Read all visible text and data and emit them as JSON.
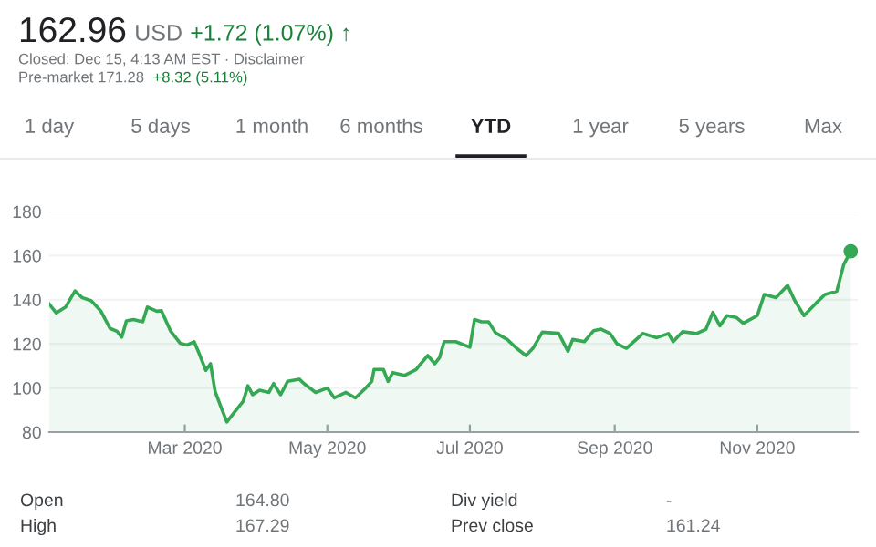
{
  "chart_data": {
    "type": "area",
    "annotations": [
      "162.96",
      "USD",
      "+1.72 (1.07%) ↑",
      "Closed: Dec 15, 4:13 AM EST · Disclaimer",
      "Pre-market 171.28",
      "+8.32 (5.11%)",
      "1 day",
      "5 days",
      "1 month",
      "6 months",
      "YTD",
      "1 year",
      "5 years",
      "Max",
      "Open",
      "164.80",
      "High",
      "167.29",
      "Div yield",
      "-",
      "Prev close",
      "161.24"
    ],
    "x": [
      "2020-01-03",
      "2020-01-06",
      "2020-01-10",
      "2020-01-14",
      "2020-01-17",
      "2020-01-21",
      "2020-01-25",
      "2020-01-29",
      "2020-02-01",
      "2020-02-03",
      "2020-02-05",
      "2020-02-08",
      "2020-02-12",
      "2020-02-14",
      "2020-02-18",
      "2020-02-20",
      "2020-02-24",
      "2020-02-28",
      "2020-03-02",
      "2020-03-05",
      "2020-03-07",
      "2020-03-10",
      "2020-03-12",
      "2020-03-14",
      "2020-03-17",
      "2020-03-19",
      "2020-03-22",
      "2020-03-26",
      "2020-03-28",
      "2020-03-30",
      "2020-04-02",
      "2020-04-06",
      "2020-04-08",
      "2020-04-11",
      "2020-04-14",
      "2020-04-19",
      "2020-04-21",
      "2020-04-26",
      "2020-05-01",
      "2020-05-04",
      "2020-05-09",
      "2020-05-13",
      "2020-05-17",
      "2020-05-20",
      "2020-05-21",
      "2020-05-25",
      "2020-05-27",
      "2020-05-29",
      "2020-06-03",
      "2020-06-08",
      "2020-06-10",
      "2020-06-13",
      "2020-06-16",
      "2020-06-18",
      "2020-06-20",
      "2020-06-25",
      "2020-07-01",
      "2020-07-03",
      "2020-07-06",
      "2020-07-09",
      "2020-07-12",
      "2020-07-17",
      "2020-07-21",
      "2020-07-25",
      "2020-07-28",
      "2020-08-01",
      "2020-08-08",
      "2020-08-12",
      "2020-08-14",
      "2020-08-19",
      "2020-08-23",
      "2020-08-26",
      "2020-08-30",
      "2020-09-02",
      "2020-09-06",
      "2020-09-13",
      "2020-09-19",
      "2020-09-24",
      "2020-09-26",
      "2020-09-30",
      "2020-10-06",
      "2020-10-10",
      "2020-10-13",
      "2020-10-16",
      "2020-10-19",
      "2020-10-23",
      "2020-10-26",
      "2020-11-01",
      "2020-11-04",
      "2020-11-09",
      "2020-11-14",
      "2020-11-17",
      "2020-11-21",
      "2020-11-26",
      "2020-11-30",
      "2020-12-05",
      "2020-12-08",
      "2020-12-11"
    ],
    "series": [
      {
        "color": "#34a853",
        "values": [
          138,
          134,
          136.7,
          144,
          141,
          139.5,
          135,
          127,
          125.7,
          123,
          130.4,
          131,
          130,
          136.7,
          134.8,
          135,
          125.7,
          120.3,
          119.5,
          121,
          116,
          108,
          111,
          98.3,
          90,
          84.6,
          88.7,
          94,
          101,
          97,
          99,
          98,
          102,
          97,
          103,
          104,
          102,
          98,
          100,
          95.5,
          98,
          95.5,
          99.5,
          103,
          108.4,
          108.4,
          103,
          107,
          105.7,
          108.4,
          111,
          114.7,
          111,
          113.7,
          121,
          121,
          118.5,
          131,
          130,
          130,
          125,
          122,
          118,
          114.7,
          118,
          125.3,
          124.8,
          116.6,
          122,
          121,
          126,
          126.7,
          124.7,
          120,
          118,
          124.7,
          122.8,
          124.7,
          121,
          125.5,
          124.7,
          126.6,
          134.3,
          128.2,
          132.8,
          132,
          129.3,
          132.8,
          142.4,
          141,
          146.5,
          139.7,
          132.8,
          138.3,
          142.4,
          143.8,
          156,
          162
        ]
      },
      {
        "type": "scatter",
        "color": "#34a853",
        "marker": "circle",
        "x": [
          "2020-12-11"
        ],
        "values": [
          162
        ]
      }
    ],
    "xlim": [
      "2020-01-03",
      "2020-12-14"
    ],
    "xticks": [
      {
        "value": "2020-03-01",
        "label": "Mar 2020"
      },
      {
        "value": "2020-05-01",
        "label": "May 2020"
      },
      {
        "value": "2020-07-01",
        "label": "Jul 2020"
      },
      {
        "value": "2020-09-01",
        "label": "Sep 2020"
      },
      {
        "value": "2020-11-01",
        "label": "Nov 2020"
      }
    ],
    "ylim": [
      80,
      180
    ],
    "yticks": [
      80,
      100,
      120,
      140,
      160,
      180
    ],
    "grid": "y",
    "legend": false
  }
}
